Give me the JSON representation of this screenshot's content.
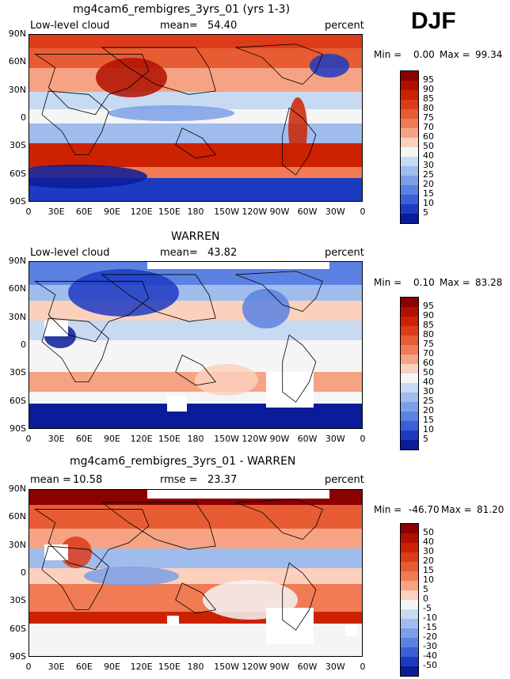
{
  "season": "DJF",
  "panels": [
    {
      "id": "top",
      "title": "mg4cam6_rembigres_3yrs_01 (yrs 1-3)",
      "left_label": "Low-level cloud",
      "mean_label": "mean=",
      "mean_value": "54.40",
      "unit": "percent",
      "min_label": "Min =",
      "min_value": "0.00",
      "max_label": "Max =",
      "max_value": "99.34",
      "colorbar": {
        "labels": [
          "95",
          "90",
          "85",
          "80",
          "75",
          "70",
          "60",
          "50",
          "40",
          "30",
          "25",
          "20",
          "15",
          "10",
          "5"
        ],
        "colors": [
          "#8b0000",
          "#b01000",
          "#cc2200",
          "#dd3b1a",
          "#e85c33",
          "#f07b55",
          "#f6a383",
          "#fbd1bd",
          "#f5f5f5",
          "#c8d9f2",
          "#9fbcec",
          "#7d9fe8",
          "#5b82e2",
          "#3b5fd8",
          "#1d3bc2",
          "#0a1c9a"
        ]
      }
    },
    {
      "id": "middle",
      "title": "WARREN",
      "left_label": "Low-level cloud",
      "mean_label": "mean=",
      "mean_value": "43.82",
      "unit": "percent",
      "min_label": "Min =",
      "min_value": "0.10",
      "max_label": "Max =",
      "max_value": "83.28",
      "colorbar": {
        "labels": [
          "95",
          "90",
          "85",
          "80",
          "75",
          "70",
          "60",
          "50",
          "40",
          "30",
          "25",
          "20",
          "15",
          "10",
          "5"
        ],
        "colors": [
          "#8b0000",
          "#b01000",
          "#cc2200",
          "#dd3b1a",
          "#e85c33",
          "#f07b55",
          "#f6a383",
          "#fbd1bd",
          "#f5f5f5",
          "#c8d9f2",
          "#9fbcec",
          "#7d9fe8",
          "#5b82e2",
          "#3b5fd8",
          "#1d3bc2",
          "#0a1c9a"
        ]
      }
    },
    {
      "id": "bottom",
      "title": "mg4cam6_rembigres_3yrs_01 - WARREN",
      "left_label": "mean =",
      "left_value": "10.58",
      "mean_label": "rmse =",
      "mean_value": "23.37",
      "unit": "percent",
      "min_label": "Min =",
      "min_value": "-46.70",
      "max_label": "Max =",
      "max_value": "81.20",
      "colorbar": {
        "labels": [
          "50",
          "40",
          "30",
          "20",
          "15",
          "10",
          "5",
          "0",
          "-5",
          "-10",
          "-15",
          "-20",
          "-30",
          "-40",
          "-50"
        ],
        "colors": [
          "#8b0000",
          "#b01000",
          "#cc2200",
          "#dd3b1a",
          "#e85c33",
          "#f07b55",
          "#f6a383",
          "#fbd1bd",
          "#f5f5f5",
          "#c8d9f2",
          "#9fbcec",
          "#7d9fe8",
          "#5b82e2",
          "#3b5fd8",
          "#1d3bc2",
          "#0a1c9a"
        ]
      }
    }
  ],
  "axes": {
    "lat_ticks": [
      "90N",
      "60N",
      "30N",
      "0",
      "30S",
      "60S",
      "90S"
    ],
    "lon_ticks": [
      "0",
      "30E",
      "60E",
      "90E",
      "120E",
      "150E",
      "180",
      "150W",
      "120W",
      "90W",
      "60W",
      "30W",
      "0"
    ]
  },
  "missing_color": "#ffffff",
  "coast_color": "#000000"
}
